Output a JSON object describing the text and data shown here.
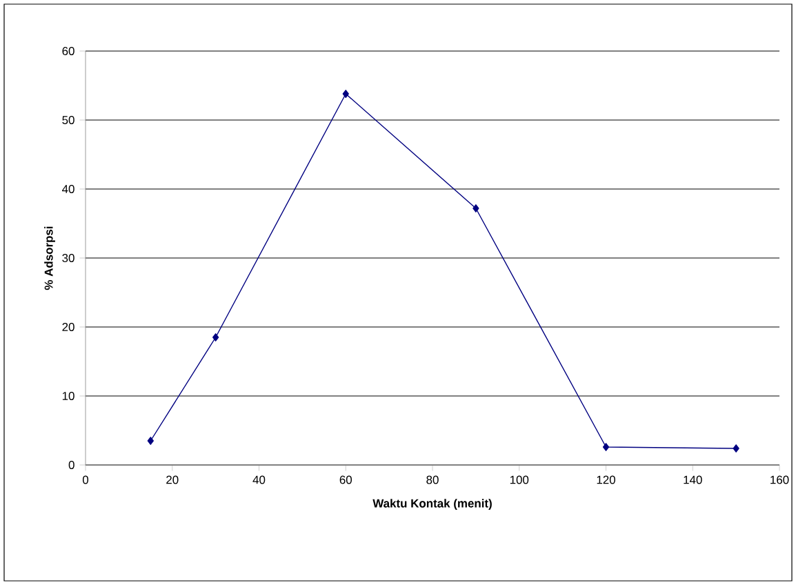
{
  "chart_data": {
    "type": "line",
    "xlabel": "Waktu Kontak (menit)",
    "ylabel": "% Adsorpsi",
    "x": [
      15,
      30,
      60,
      90,
      120,
      150
    ],
    "series": [
      {
        "color": "#000080",
        "values": [
          3.5,
          18.5,
          53.8,
          37.2,
          2.6,
          2.4
        ]
      }
    ],
    "xlim": [
      0,
      160
    ],
    "xticks": [
      0,
      20,
      40,
      60,
      80,
      100,
      120,
      140,
      160
    ],
    "ylim": [
      0,
      60
    ],
    "yticks": [
      0,
      10,
      20,
      30,
      40,
      50,
      60
    ],
    "grid": "y",
    "marker": "diamond",
    "line_style": "solid"
  }
}
